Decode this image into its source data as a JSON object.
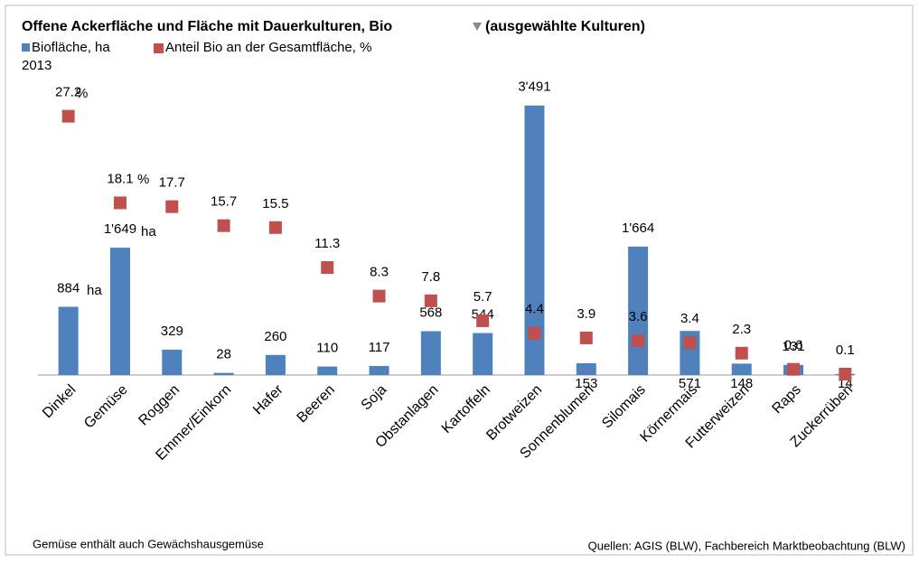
{
  "chart_data": {
    "type": "bar",
    "title": "Offene Ackerfläche und Fläche mit Dauerkulturen, Bio",
    "filter": "(ausgewählte Kulturen)",
    "subtitle": "2013",
    "categories": [
      "Dinkel",
      "Gemüse",
      "Roggen",
      "Emmer/Einkorn",
      "Hafer",
      "Beeren",
      "Soja",
      "Obstanlagen",
      "Kartoffeln",
      "Brotweizen",
      "Sonnenblumen",
      "Silomais",
      "Körnermais",
      "Futterweizen",
      "Raps",
      "Zuckerrüben"
    ],
    "series": [
      {
        "name": "Biofläche, ha",
        "color": "#4f81bd",
        "values": [
          884,
          1649,
          329,
          28,
          260,
          110,
          117,
          568,
          544,
          3491,
          153,
          1664,
          571,
          148,
          131,
          14
        ],
        "value_labels": [
          "884",
          "1'649",
          "329",
          "28",
          "260",
          "110",
          "117",
          "568",
          "544",
          "3'491",
          "153",
          "1'664",
          "571",
          "148",
          "131",
          "14"
        ]
      },
      {
        "name": "Anteil Bio an der Gesamtfläche, %",
        "color": "#c0504d",
        "axis": "y2",
        "values": [
          27.2,
          18.1,
          17.7,
          15.7,
          15.5,
          11.3,
          8.3,
          7.8,
          5.7,
          4.4,
          3.9,
          3.6,
          3.4,
          2.3,
          0.6,
          0.1
        ]
      }
    ],
    "ylim": [
      0,
      3500
    ],
    "y2lim": [
      0,
      28.4
    ],
    "annotations": [
      "ha",
      "%",
      "ha",
      "%"
    ],
    "notes": [
      "Gemüse enthält auch Gewächshausgemüse",
      "Quellen: AGIS (BLW), Fachbereich Marktbeobachtung (BLW)"
    ]
  }
}
